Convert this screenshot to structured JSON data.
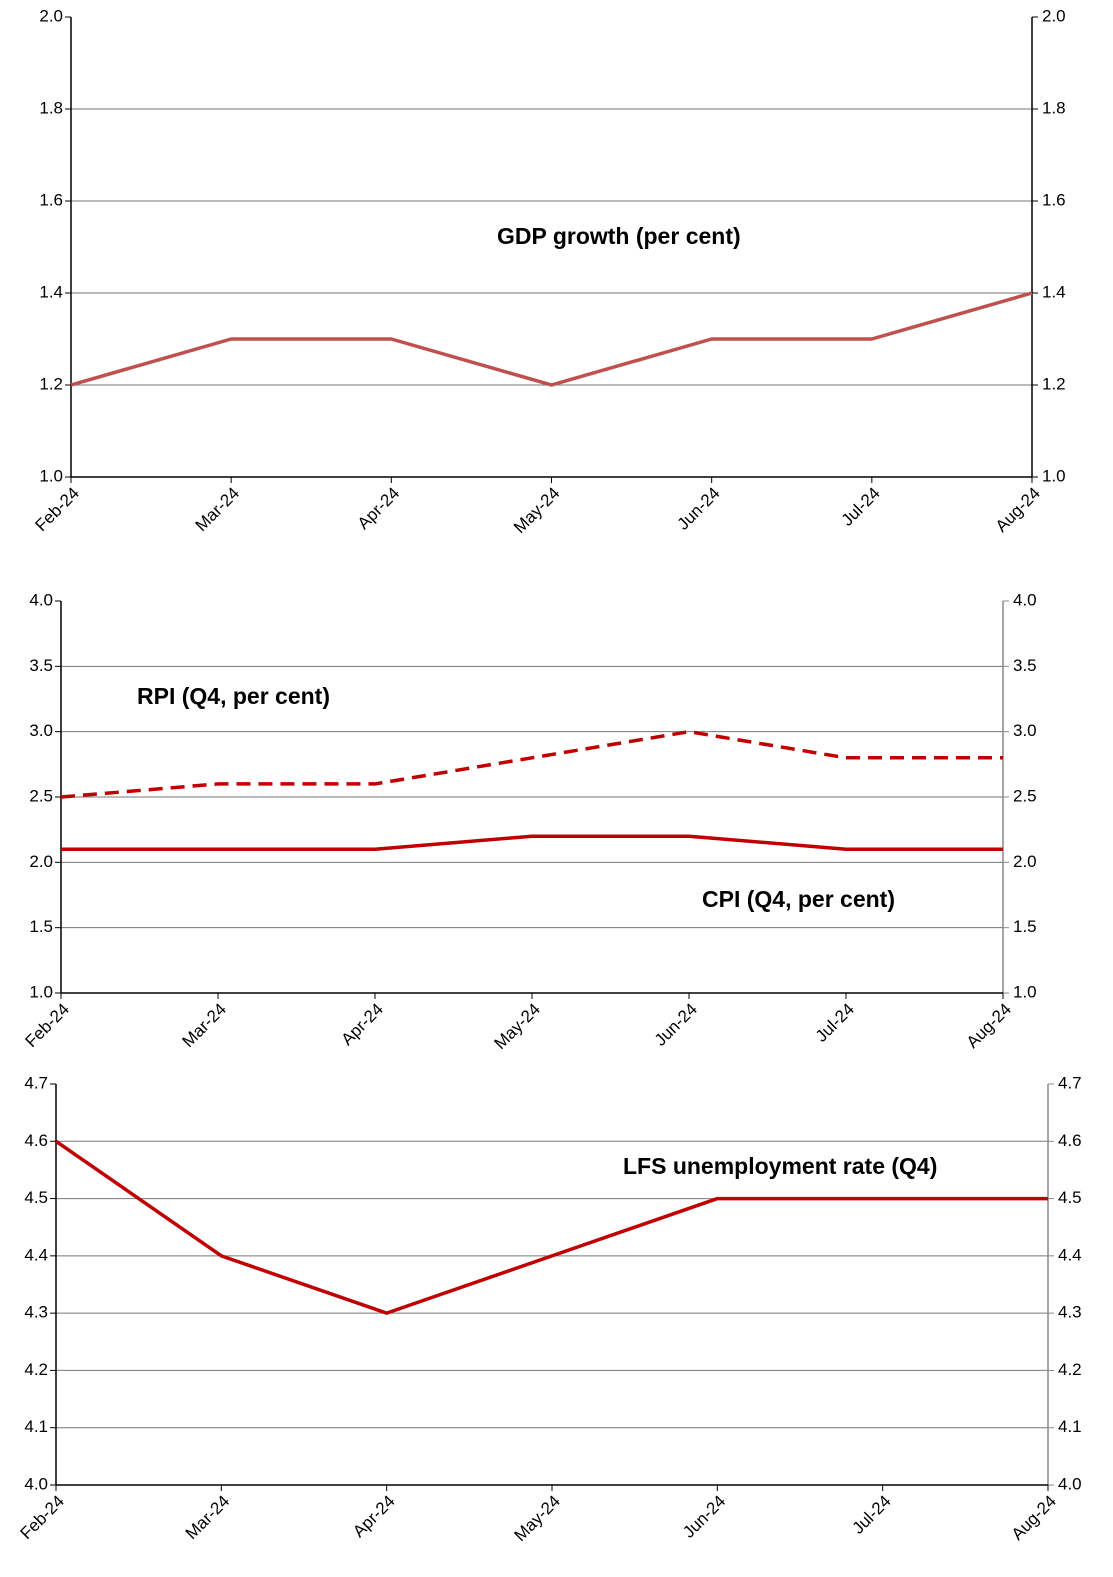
{
  "chart_data": [
    {
      "type": "line",
      "categories": [
        "Feb-24",
        "Mar-24",
        "Apr-24",
        "May-24",
        "Jun-24",
        "Jul-24",
        "Aug-24"
      ],
      "series": [
        {
          "name": "GDP growth (per cent)",
          "color": "#c0504d",
          "values": [
            1.2,
            1.3,
            1.3,
            1.2,
            1.3,
            1.3,
            1.4
          ]
        }
      ],
      "ylim": [
        1.0,
        2.0
      ],
      "yticks": [
        {
          "value": 1.0,
          "label": "1.0"
        },
        1.2,
        1.4,
        1.6,
        1.8,
        {
          "value": 2.0,
          "label": "2.0"
        }
      ],
      "y2lim": [
        1.0,
        2.0
      ],
      "y2ticks": [
        {
          "value": 1.0,
          "label": "1.0"
        },
        1.2,
        1.4,
        1.6,
        1.8,
        {
          "value": 2.0,
          "label": "2.0"
        }
      ],
      "grid": true
    },
    {
      "type": "line",
      "categories": [
        "Feb-24",
        "Mar-24",
        "Apr-24",
        "May-24",
        "Jun-24",
        "Jul-24",
        "Aug-24"
      ],
      "series": [
        {
          "name": "RPI (Q4, per cent)",
          "color": "#c00000",
          "dashed": true,
          "values": [
            2.5,
            2.6,
            2.6,
            2.8,
            3.0,
            2.8,
            2.8
          ]
        },
        {
          "name": "CPI (Q4, per cent)",
          "color": "#c00000",
          "values": [
            2.1,
            2.1,
            2.1,
            2.2,
            2.2,
            2.1,
            2.1
          ]
        }
      ],
      "ylim": [
        1.0,
        4.0
      ],
      "yticks": [
        {
          "value": 1.0,
          "label": "1.0"
        },
        1.5,
        {
          "value": 2.0,
          "label": "2.0"
        },
        2.5,
        {
          "value": 3.0,
          "label": "3.0"
        },
        3.5,
        {
          "value": 4.0,
          "label": "4.0"
        }
      ],
      "y2lim": [
        1.0,
        4.0
      ],
      "y2ticks": [
        {
          "value": 1.0,
          "label": "1.0"
        },
        1.5,
        {
          "value": 2.0,
          "label": "2.0"
        },
        2.5,
        {
          "value": 3.0,
          "label": "3.0"
        },
        3.5,
        {
          "value": 4.0,
          "label": "4.0"
        }
      ],
      "grid": true
    },
    {
      "type": "line",
      "categories": [
        "Feb-24",
        "Mar-24",
        "Apr-24",
        "May-24",
        "Jun-24",
        "Jul-24",
        "Aug-24"
      ],
      "series": [
        {
          "name": "LFS unemployment rate (Q4)",
          "color": "#c00000",
          "values": [
            4.6,
            4.4,
            4.3,
            4.4,
            4.5,
            4.5,
            4.5
          ]
        }
      ],
      "ylim": [
        4.0,
        4.7
      ],
      "yticks": [
        {
          "value": 4.0,
          "label": "4.0"
        },
        4.1,
        4.2,
        4.3,
        4.4,
        4.5,
        4.6,
        4.7
      ],
      "y2lim": [
        4.0,
        4.7
      ],
      "y2ticks": [
        {
          "value": 4.0,
          "label": "4.0"
        },
        4.1,
        4.2,
        4.3,
        4.4,
        4.5,
        4.6,
        4.7
      ],
      "grid": true
    }
  ]
}
